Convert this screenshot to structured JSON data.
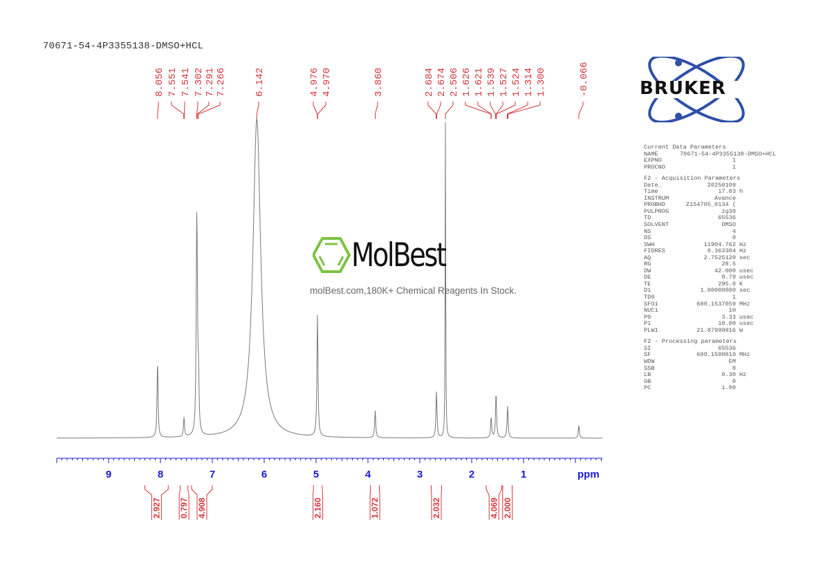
{
  "title": "70671-54-4P3355138-DMSO+HCL",
  "watermark": {
    "brand": "MolBest",
    "tagline": "molBest.com,180K+ Chemical Reagents In Stock.",
    "brand_color": "#7dc242"
  },
  "logo": {
    "text": "BRUKER",
    "orbit_color": "#2f4fa8"
  },
  "colors": {
    "spectrum": "#777777",
    "peak_labels": "#d0343a",
    "axis": "#1a1ad0",
    "integrals": "#d0343a"
  },
  "parameters": {
    "sections": [
      {
        "header": "Current Data Parameters",
        "rows": [
          {
            "key": "NAME",
            "value": "70671-54-4P3355138-DMSO+HCL",
            "unit": ""
          },
          {
            "key": "EXPNO",
            "value": "1",
            "unit": ""
          },
          {
            "key": "PROCNO",
            "value": "1",
            "unit": ""
          }
        ]
      },
      {
        "header": "F2 - Acquisition Parameters",
        "rows": [
          {
            "key": "Date_",
            "value": "20250109",
            "unit": ""
          },
          {
            "key": "Time",
            "value": "17.03",
            "unit": "h"
          },
          {
            "key": "INSTRUM",
            "value": "Avance",
            "unit": ""
          },
          {
            "key": "PROBHD",
            "value": "Z154705_0134 (",
            "unit": ""
          },
          {
            "key": "PULPROG",
            "value": "zg30",
            "unit": ""
          },
          {
            "key": "TD",
            "value": "65536",
            "unit": ""
          },
          {
            "key": "SOLVENT",
            "value": "DMSO",
            "unit": ""
          },
          {
            "key": "NS",
            "value": "4",
            "unit": ""
          },
          {
            "key": "DS",
            "value": "0",
            "unit": ""
          },
          {
            "key": "SWH",
            "value": "11904.762",
            "unit": "Hz"
          },
          {
            "key": "FIDRES",
            "value": "0.363304",
            "unit": "Hz"
          },
          {
            "key": "AQ",
            "value": "2.7525120",
            "unit": "sec"
          },
          {
            "key": "RG",
            "value": "28.5",
            "unit": ""
          },
          {
            "key": "DW",
            "value": "42.000",
            "unit": "usec"
          },
          {
            "key": "DE",
            "value": "8.79",
            "unit": "usec"
          },
          {
            "key": "TE",
            "value": "295.0",
            "unit": "K"
          },
          {
            "key": "D1",
            "value": "1.00000000",
            "unit": "sec"
          },
          {
            "key": "TD0",
            "value": "1",
            "unit": ""
          },
          {
            "key": "SFO1",
            "value": "600.1537059",
            "unit": "MHz"
          },
          {
            "key": "NUC1",
            "value": "1H",
            "unit": ""
          },
          {
            "key": "P0",
            "value": "3.33",
            "unit": "usec"
          },
          {
            "key": "P1",
            "value": "10.00",
            "unit": "usec"
          },
          {
            "key": "PLW1",
            "value": "21.87999916",
            "unit": "W"
          }
        ]
      },
      {
        "header": "F2 - Processing parameters",
        "rows": [
          {
            "key": "SI",
            "value": "65536",
            "unit": ""
          },
          {
            "key": "SF",
            "value": "600.1500019",
            "unit": "MHz"
          },
          {
            "key": "WDW",
            "value": "EM",
            "unit": ""
          },
          {
            "key": "SSB",
            "value": "0",
            "unit": ""
          },
          {
            "key": "LB",
            "value": "0.30",
            "unit": "Hz"
          },
          {
            "key": "GB",
            "value": "0",
            "unit": ""
          },
          {
            "key": "PC",
            "value": "1.00",
            "unit": ""
          }
        ]
      }
    ]
  },
  "chart_data": {
    "type": "line",
    "title": "70671-54-4P3355138-DMSO+HCL",
    "xlabel": "ppm",
    "ylabel": "",
    "xlim": [
      10.0,
      -0.5
    ],
    "x_reversed": true,
    "x_ticks": [
      "9",
      "8",
      "7",
      "6",
      "5",
      "4",
      "3",
      "2",
      "1"
    ],
    "grid": false,
    "peak_labels": [
      "8.056",
      "7.551",
      "7.541",
      "7.302",
      "7.291",
      "7.266",
      "6.142",
      "4.976",
      "4.970",
      "3.860",
      "2.684",
      "2.674",
      "2.506",
      "1.626",
      "1.621",
      "1.539",
      "1.527",
      "1.524",
      "1.314",
      "1.300",
      "-0.066"
    ],
    "peaks": [
      {
        "ppm": 8.056,
        "rel_height": 0.235
      },
      {
        "ppm": 7.546,
        "rel_height": 0.06
      },
      {
        "ppm": 7.302,
        "rel_height": 0.52
      },
      {
        "ppm": 7.291,
        "rel_height": 0.28
      },
      {
        "ppm": 7.266,
        "rel_height": 0.15
      },
      {
        "ppm": 6.142,
        "rel_height": 1.0
      },
      {
        "ppm": 4.973,
        "rel_height": 0.38
      },
      {
        "ppm": 3.86,
        "rel_height": 0.085
      },
      {
        "ppm": 2.679,
        "rel_height": 0.145
      },
      {
        "ppm": 2.506,
        "rel_height": 1.0
      },
      {
        "ppm": 1.624,
        "rel_height": 0.065
      },
      {
        "ppm": 1.53,
        "rel_height": 0.14
      },
      {
        "ppm": 1.307,
        "rel_height": 0.1
      },
      {
        "ppm": -0.066,
        "rel_height": 0.04
      }
    ],
    "integrals": [
      {
        "range": [
          8.3,
          7.85
        ],
        "value": "2.927"
      },
      {
        "range": [
          7.62,
          7.47
        ],
        "value": "0.797"
      },
      {
        "range": [
          7.4,
          7.0
        ],
        "value": "4.908"
      },
      {
        "range": [
          5.05,
          4.88
        ],
        "value": "2.160"
      },
      {
        "range": [
          3.95,
          3.78
        ],
        "value": "1.072"
      },
      {
        "range": [
          2.78,
          2.58
        ],
        "value": "2.032"
      },
      {
        "range": [
          1.72,
          1.42
        ],
        "value": "4.069"
      },
      {
        "range": [
          1.4,
          1.22
        ],
        "value": "2.000"
      }
    ]
  }
}
